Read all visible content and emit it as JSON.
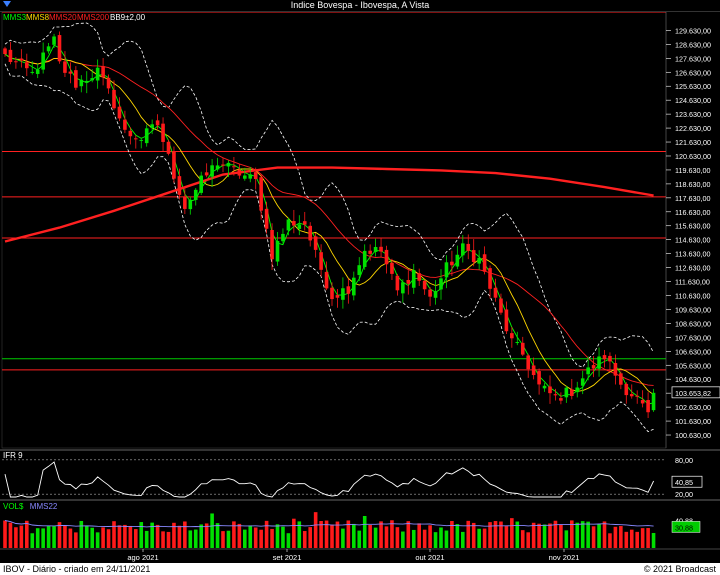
{
  "window": {
    "title": "Indice Bovespa - Ibovespa, A Vista"
  },
  "footer": {
    "left": "IBOV - Diário - criado em 24/11/2021",
    "right": "© 2021 Broadcast"
  },
  "colors": {
    "up": "#00e000",
    "down": "#ff1a1a",
    "mms3": "#00ff00",
    "mms8": "#ffd700",
    "mms20": "#ff2020",
    "mms200": "#ff2020",
    "bands": "#ffffff",
    "hline": "#ff2020",
    "hline_green": "#00cc00",
    "axis": "#ffffff"
  },
  "chart_data": [
    {
      "type": "candlestick",
      "legend": [
        {
          "label": "MMS3",
          "color": "#00ff00"
        },
        {
          "label": "MMS8",
          "color": "#ffd700"
        },
        {
          "label": "MMS20",
          "color": "#ff2020"
        },
        {
          "label": "MMS200",
          "color": "#ff2020"
        },
        {
          "label": "BB9±2,00",
          "color": "#ffffff"
        }
      ],
      "yticks": [
        100630,
        101630,
        102630,
        103630,
        104630,
        105630,
        106630,
        107630,
        108630,
        109630,
        110630,
        111630,
        112630,
        113630,
        114630,
        115630,
        116630,
        117630,
        118630,
        119630,
        120630,
        121630,
        122630,
        123630,
        124630,
        125630,
        126630,
        127630,
        128630,
        129630
      ],
      "ytick_labels": [
        "100.630,00",
        "101.630,00",
        "102.630,00",
        "103.630,00",
        "104.630,00",
        "105.630,00",
        "106.630,00",
        "107.630,00",
        "108.630,00",
        "109.630,00",
        "110.630,00",
        "111.630,00",
        "112.630,00",
        "113.630,00",
        "114.630,00",
        "115.630,00",
        "116.630,00",
        "117.630,00",
        "118.630,00",
        "119.630,00",
        "120.630,00",
        "121.630,00",
        "122.630,00",
        "123.630,00",
        "124.630,00",
        "125.630,00",
        "126.630,00",
        "127.630,00",
        "128.630,00",
        "129.630,00"
      ],
      "ylim": [
        99700,
        130950
      ],
      "last_value": 103653.82,
      "last_label": "103.653,82",
      "horizontal_lines": [
        {
          "y": 130950,
          "color": "#ff2020"
        },
        {
          "y": 120950,
          "color": "#ff2020"
        },
        {
          "y": 117700,
          "color": "#ff2020"
        },
        {
          "y": 114750,
          "color": "#ff2020"
        },
        {
          "y": 105300,
          "color": "#ff2020"
        },
        {
          "y": 106100,
          "color": "#00cc00"
        }
      ],
      "anchors": [
        [
          0,
          127800
        ],
        [
          5,
          126500
        ],
        [
          9,
          128900
        ],
        [
          10,
          127200
        ],
        [
          13,
          125800
        ],
        [
          17,
          126700
        ],
        [
          20,
          124400
        ],
        [
          22,
          122300
        ],
        [
          25,
          121900
        ],
        [
          28,
          122900
        ],
        [
          31,
          119300
        ],
        [
          33,
          117000
        ],
        [
          36,
          118800
        ],
        [
          39,
          120200
        ],
        [
          42,
          119600
        ],
        [
          46,
          118800
        ],
        [
          49,
          113600
        ],
        [
          52,
          115900
        ],
        [
          55,
          115800
        ],
        [
          57,
          113500
        ],
        [
          60,
          110600
        ],
        [
          63,
          111200
        ],
        [
          66,
          113900
        ],
        [
          69,
          113800
        ],
        [
          72,
          110900
        ],
        [
          75,
          112400
        ],
        [
          78,
          110400
        ],
        [
          81,
          112600
        ],
        [
          84,
          114000
        ],
        [
          87,
          113200
        ],
        [
          90,
          110200
        ],
        [
          93,
          107300
        ],
        [
          95,
          106400
        ],
        [
          98,
          104100
        ],
        [
          101,
          103300
        ],
        [
          104,
          103800
        ],
        [
          107,
          105200
        ],
        [
          110,
          106300
        ],
        [
          113,
          104300
        ],
        [
          116,
          103200
        ],
        [
          118,
          102000
        ],
        [
          119,
          103650
        ]
      ],
      "mms200": [
        [
          0,
          114500
        ],
        [
          10,
          115500
        ],
        [
          20,
          116700
        ],
        [
          30,
          118000
        ],
        [
          40,
          119300
        ],
        [
          50,
          119800
        ],
        [
          60,
          119800
        ],
        [
          70,
          119700
        ],
        [
          80,
          119600
        ],
        [
          90,
          119400
        ],
        [
          100,
          119000
        ],
        [
          110,
          118400
        ],
        [
          119,
          117800
        ]
      ],
      "months": [
        {
          "label": "ago 2021",
          "x": 143
        },
        {
          "label": "set 2021",
          "x": 287
        },
        {
          "label": "out 2021",
          "x": 430
        },
        {
          "label": "nov 2021",
          "x": 564
        }
      ]
    },
    {
      "type": "line",
      "name": "IFR 9",
      "ylim": [
        20,
        80
      ],
      "levels": [
        {
          "value": 80,
          "label": "80,00"
        },
        {
          "value": 20,
          "label": "20,00"
        }
      ],
      "last_label": "40,85"
    },
    {
      "type": "bar",
      "name": "VOL$",
      "legend": [
        {
          "label": "VOL$",
          "color": "#00ff00"
        },
        {
          "label": "MMS22",
          "color": "#8888ff"
        }
      ],
      "ticks": [
        {
          "label": "40,88",
          "value": 40.88
        }
      ],
      "last_label": "30,88"
    }
  ]
}
